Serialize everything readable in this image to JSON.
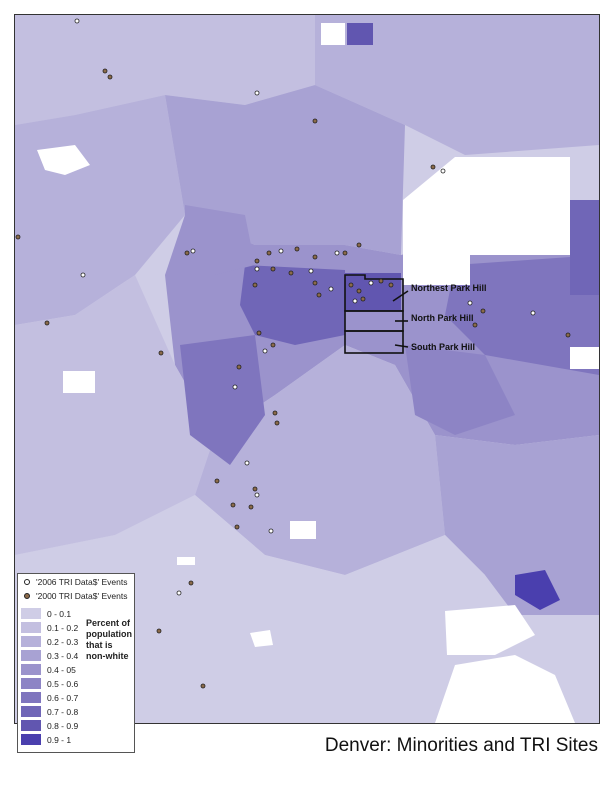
{
  "title": "Denver: Minorities and TRI Sites",
  "legend": {
    "events": [
      {
        "label": "'2006 TRI Data$' Events",
        "icon": "hollow-circle-icon"
      },
      {
        "label": "'2000 TRI Data$' Events",
        "icon": "filled-circle-icon"
      }
    ],
    "title": "Percent of population that is non-white",
    "classes": [
      {
        "label": "0 - 0.1",
        "color": "#cfcde6"
      },
      {
        "label": "0.1 - 0.2",
        "color": "#c3bfe0"
      },
      {
        "label": "0.2 - 0.3",
        "color": "#b6b1da"
      },
      {
        "label": "0.3 - 0.4",
        "color": "#a8a2d3"
      },
      {
        "label": "0.4 - 05",
        "color": "#9b93cc"
      },
      {
        "label": "0.5 - 0.6",
        "color": "#8d84c5"
      },
      {
        "label": "0.6 - 0.7",
        "color": "#7f75be"
      },
      {
        "label": "0.7 - 0.8",
        "color": "#7066b7"
      },
      {
        "label": "0.8 - 0.9",
        "color": "#6156b0"
      },
      {
        "label": "0.9 - 1",
        "color": "#4a3fae"
      }
    ]
  },
  "neighborhoods": [
    {
      "name": "Northest Park Hill"
    },
    {
      "name": "North Park Hill"
    },
    {
      "name": "South Park Hill"
    }
  ]
}
